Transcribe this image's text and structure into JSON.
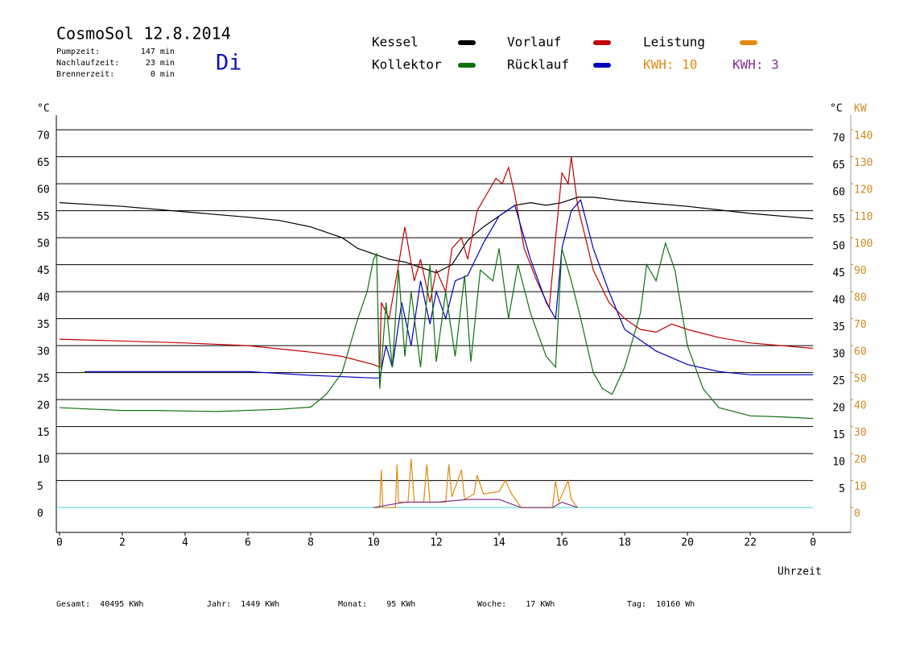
{
  "chart_data": {
    "type": "line",
    "title": "CosmoSol 12.8.2014",
    "weekday": "Di",
    "info": [
      {
        "label": "Pumpzeit:",
        "value": "147 min"
      },
      {
        "label": "Nachlaufzeit:",
        "value": "23 min"
      },
      {
        "label": "Brennerzeit:",
        "value": "0 min"
      }
    ],
    "y_unit": "°C",
    "y2_unit_c": "°C",
    "y2_unit": "KW",
    "x_label": "Uhrzeit",
    "kwh": [
      {
        "label": "KWH: 10",
        "color": "#e08a10"
      },
      {
        "label": "KWH: 3",
        "color": "#803090"
      }
    ],
    "footer": [
      "Gesamt:  40495 KWh",
      "Jahr:  1449 KWh",
      "Monat:    95 KWh",
      "Woche:    17 KWh",
      "Tag:  10160 Wh"
    ],
    "xlim": [
      -0.1,
      25.2
    ],
    "xticks": [
      0,
      2,
      4,
      6,
      8,
      10,
      12,
      14,
      16,
      18,
      20,
      22,
      {
        "value": 24,
        "label": "0"
      }
    ],
    "ylim": [
      -4.6,
      72.7
    ],
    "yticks": [
      0,
      5,
      10,
      15,
      20,
      25,
      30,
      35,
      40,
      45,
      50,
      55,
      60,
      65,
      70
    ],
    "y_right_ticks": [
      5,
      10,
      15,
      20,
      25,
      30,
      35,
      40,
      45,
      50,
      55,
      60,
      65,
      70
    ],
    "y2lim": [
      -9.2,
      145.4
    ],
    "y2ticks": [
      0,
      10,
      20,
      30,
      40,
      50,
      60,
      70,
      80,
      90,
      100,
      110,
      120,
      130,
      140
    ],
    "grid": true,
    "grid_color": "#000000",
    "zero_line_color": "#40d8d8",
    "series": [
      {
        "name": "Kessel",
        "color": "#000000",
        "x": [
          0,
          2,
          4,
          6,
          7,
          8,
          9,
          9.5,
          10,
          10.5,
          11,
          11.5,
          12,
          12.5,
          13,
          13.5,
          14,
          14.5,
          15,
          15.5,
          16,
          16.5,
          17,
          18,
          20,
          22,
          24
        ],
        "values": [
          56.5,
          55.8,
          54.8,
          53.8,
          53.2,
          52,
          50,
          48,
          47,
          46,
          45.5,
          44.5,
          43.5,
          45,
          49.5,
          52,
          54,
          56,
          56.5,
          56,
          56.5,
          57.5,
          57.5,
          56.8,
          55.8,
          54.5,
          53.5
        ]
      },
      {
        "name": "Vorlauf",
        "color": "#c00000",
        "x": [
          0,
          4,
          6,
          8,
          9,
          10,
          10.2,
          10.25,
          10.5,
          10.8,
          11,
          11.3,
          11.5,
          11.8,
          12,
          12.3,
          12.5,
          12.8,
          13,
          13.3,
          13.6,
          13.9,
          14.1,
          14.3,
          14.5,
          14.8,
          15.2,
          15.6,
          15.8,
          16,
          16.2,
          16.3,
          16.5,
          17,
          17.5,
          18,
          18.5,
          19,
          19.5,
          20,
          21,
          22,
          24
        ],
        "values": [
          31.2,
          30.5,
          30,
          28.8,
          28,
          26.5,
          26,
          38,
          35,
          45,
          52,
          42,
          46,
          38,
          44,
          40,
          48,
          50,
          46,
          55,
          58,
          61,
          60,
          63,
          58,
          48,
          42,
          37,
          50,
          62,
          60,
          65,
          56,
          44,
          38,
          35,
          33,
          32.5,
          34,
          33,
          31.5,
          30.5,
          29.5
        ]
      },
      {
        "name": "Rücklauf",
        "color": "#0000c0",
        "x": [
          0.8,
          4,
          6,
          8,
          10,
          10.2,
          10.4,
          10.6,
          10.9,
          11.2,
          11.5,
          11.8,
          12,
          12.3,
          12.6,
          13,
          13.5,
          14,
          14.5,
          15,
          15.5,
          15.8,
          16,
          16.3,
          16.6,
          17,
          17.5,
          18,
          19,
          20,
          21,
          22,
          24
        ],
        "values": [
          25.2,
          25.2,
          25.2,
          24.5,
          24,
          24,
          30,
          26,
          38,
          30,
          42,
          34,
          40,
          35,
          42,
          43,
          49,
          54,
          56,
          46,
          38,
          35,
          48,
          55,
          57,
          48,
          40,
          33,
          29,
          26.5,
          25.2,
          24.6,
          24.6
        ]
      },
      {
        "name": "Kollektor",
        "color": "#107010",
        "x": [
          0,
          2,
          3,
          5,
          7,
          8,
          8.5,
          9,
          9.5,
          9.8,
          10,
          10.1,
          10.2,
          10.4,
          10.6,
          10.8,
          11,
          11.2,
          11.5,
          11.8,
          12,
          12.3,
          12.6,
          12.9,
          13.1,
          13.4,
          13.8,
          14,
          14.3,
          14.6,
          15,
          15.5,
          15.8,
          16,
          16.3,
          16.6,
          17,
          17.3,
          17.6,
          18,
          18.5,
          18.7,
          19,
          19.3,
          19.6,
          20,
          20.5,
          21,
          22,
          23,
          24
        ],
        "values": [
          18.5,
          18,
          18,
          17.8,
          18.2,
          18.6,
          21,
          25,
          35,
          40,
          46,
          47,
          22,
          38,
          26,
          44,
          28,
          40,
          26,
          45,
          27,
          40,
          28,
          43,
          27,
          44,
          42,
          48,
          35,
          45,
          36,
          28,
          26,
          48,
          42,
          35,
          25,
          22,
          21,
          26,
          36,
          45,
          42,
          49,
          44,
          30,
          22,
          18.5,
          17,
          16.8,
          16.5
        ]
      },
      {
        "name": "Leistung",
        "color": "#e08a10",
        "axis": "y2",
        "x": [
          10,
          10.2,
          10.25,
          10.3,
          10.7,
          10.75,
          10.8,
          11.1,
          11.2,
          11.3,
          11.6,
          11.7,
          11.8,
          12.3,
          12.4,
          12.5,
          12.8,
          12.9,
          13.2,
          13.3,
          13.5,
          14,
          14.2,
          14.4,
          14.7,
          15.7,
          15.8,
          15.9,
          16.2,
          16.3,
          16.5
        ],
        "values": [
          0,
          0,
          14,
          0,
          0,
          16,
          2,
          2,
          18,
          2,
          2,
          16,
          2,
          2,
          16,
          4,
          14,
          3,
          5,
          12,
          5,
          6,
          10,
          5,
          0,
          0,
          10,
          2,
          10,
          3,
          0
        ]
      },
      {
        "color": "#803090",
        "axis": "y2",
        "x": [
          10,
          10.5,
          11,
          12,
          13,
          14,
          14.7,
          15.7,
          16,
          16.5
        ],
        "values": [
          0,
          1,
          2,
          2,
          3,
          3,
          0,
          0,
          2,
          0
        ]
      }
    ]
  }
}
